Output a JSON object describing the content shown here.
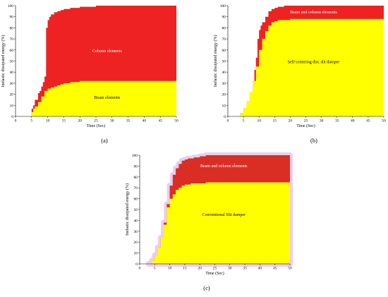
{
  "colors": {
    "upper_region": "#ee2222",
    "lower_region": "#ffff00",
    "upper_region_dark": "#a0522d",
    "halo": "#e6b8e6",
    "axis": "#000000",
    "upper_label_text": "#ffffff",
    "lower_label_text": "#000000"
  },
  "chart_data": [
    {
      "type": "area",
      "caption": "(a)",
      "xlabel": "Time (Sec)",
      "ylabel": "Inelastic dissipated energy (%)",
      "xlim": [
        0,
        50
      ],
      "ylim": [
        0,
        100
      ],
      "xticks": [
        0,
        5,
        10,
        15,
        20,
        25,
        30,
        35,
        40,
        45,
        50
      ],
      "yticks": [
        0,
        10,
        20,
        30,
        40,
        50,
        60,
        70,
        80,
        90,
        100
      ],
      "grid": false,
      "series": [
        {
          "name": "Column elements",
          "region": "upper",
          "x": [
            4.5,
            5,
            5.5,
            6,
            6.5,
            7,
            7.5,
            8,
            8.5,
            9,
            9.5,
            10,
            10.5,
            11,
            12,
            13,
            14,
            15,
            16,
            17,
            18,
            20,
            22,
            25,
            30,
            40,
            50
          ],
          "y": [
            0,
            7,
            10,
            15,
            15,
            21,
            23,
            27,
            31,
            36,
            80,
            87,
            90,
            92,
            94,
            95,
            96,
            97,
            97,
            98,
            98,
            99,
            99,
            100,
            100,
            100,
            100
          ]
        },
        {
          "name": "Beam elements",
          "region": "lower",
          "x": [
            4.5,
            5,
            5.5,
            6,
            7,
            8,
            9,
            10,
            11,
            12,
            13,
            14,
            15,
            17,
            20,
            25,
            30,
            40,
            50
          ],
          "y": [
            0,
            4,
            7,
            9,
            13,
            18,
            23,
            25,
            26,
            27,
            28,
            29,
            30,
            31,
            32,
            32,
            32,
            32,
            32
          ]
        }
      ]
    },
    {
      "type": "area",
      "caption": "(b)",
      "xlabel": "Time (Sec)",
      "ylabel": "Inelastic dissipated energy (%)",
      "xlim": [
        0,
        50
      ],
      "ylim": [
        0,
        100
      ],
      "xticks": [
        0,
        5,
        10,
        15,
        20,
        25,
        30,
        35,
        40,
        45,
        50
      ],
      "yticks": [
        0,
        10,
        20,
        30,
        40,
        50,
        60,
        70,
        80,
        90,
        100
      ],
      "grid": false,
      "series": [
        {
          "name": "Beam and column elements",
          "region": "upper",
          "x": [
            3,
            4,
            5,
            6,
            7,
            8,
            8.5,
            9,
            9.5,
            10,
            10.5,
            11,
            12,
            13,
            14,
            15,
            16,
            18,
            20,
            22,
            25,
            30,
            40,
            50
          ],
          "y": [
            0,
            3,
            8,
            14,
            22,
            32,
            42,
            53,
            70,
            78,
            82,
            85,
            90,
            95,
            97,
            98,
            99,
            100,
            100,
            100,
            100,
            100,
            100,
            100
          ]
        },
        {
          "name": "Self-centering disc slit damper",
          "region": "lower",
          "x": [
            3,
            4,
            5,
            6,
            7,
            8,
            9,
            10,
            11,
            12,
            13,
            14,
            15,
            16,
            18,
            20,
            22,
            25,
            30,
            40,
            50
          ],
          "y": [
            0,
            3,
            8,
            14,
            22,
            32,
            45,
            60,
            70,
            77,
            82,
            85,
            86,
            87,
            87,
            88,
            88,
            88,
            88,
            88,
            88
          ]
        }
      ]
    },
    {
      "type": "area",
      "caption": "(c)",
      "xlabel": "Time (Sec)",
      "ylabel": "Inelastic dissipated energy (%)",
      "xlim": [
        0,
        50
      ],
      "ylim": [
        0,
        100
      ],
      "xticks": [
        0,
        5,
        10,
        15,
        20,
        25,
        30,
        35,
        40,
        45,
        50
      ],
      "yticks": [
        0,
        10,
        20,
        30,
        40,
        50,
        60,
        70,
        80,
        90,
        100
      ],
      "grid": false,
      "series": [
        {
          "name": "Beam and column elements",
          "region": "upper",
          "x": [
            3,
            4,
            5,
            6,
            7,
            8,
            9,
            10,
            11,
            12,
            13,
            14,
            15,
            16,
            18,
            20,
            22,
            25,
            30,
            40,
            50
          ],
          "y": [
            0,
            3,
            8,
            15,
            24,
            38,
            55,
            72,
            82,
            88,
            92,
            95,
            96,
            97,
            98,
            99,
            100,
            100,
            100,
            100,
            100
          ]
        },
        {
          "name": "Conventional Slit damper",
          "region": "lower",
          "x": [
            3,
            4,
            5,
            6,
            7,
            8,
            9,
            10,
            11,
            12,
            13,
            14,
            15,
            17,
            20,
            22,
            25,
            30,
            40,
            50
          ],
          "y": [
            0,
            3,
            8,
            15,
            24,
            36,
            52,
            60,
            64,
            68,
            70,
            72,
            73,
            74,
            74,
            75,
            75,
            75,
            75,
            75
          ]
        }
      ]
    }
  ]
}
